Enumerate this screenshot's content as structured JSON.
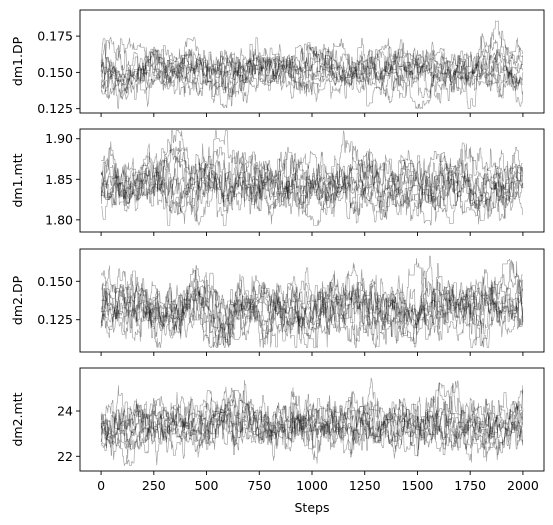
{
  "chart_data": {
    "type": "line",
    "description_note": "",
    "xlabel": "Steps",
    "xlim": [
      -100,
      2100
    ],
    "x_ticks": [
      0,
      250,
      500,
      750,
      1000,
      1250,
      1500,
      1750,
      2000
    ],
    "x_tick_labels": [
      "0",
      "250",
      "500",
      "750",
      "1000",
      "1250",
      "1500",
      "1750",
      "2000"
    ],
    "n_steps": 2000,
    "n_walkers": 10,
    "line_color": "#000000",
    "line_alpha": 0.4,
    "panels": [
      {
        "ylabel": "dm1.DP",
        "ylim": [
          0.122,
          0.193
        ],
        "y_ticks": [
          0.125,
          0.15,
          0.175
        ],
        "y_tick_labels": [
          "0.125",
          "0.150",
          "0.175"
        ],
        "series_mean": 0.151,
        "series_sd": 0.008,
        "observed_range": [
          0.125,
          0.19
        ]
      },
      {
        "ylabel": "dm1.mtt",
        "ylim": [
          1.785,
          1.912
        ],
        "y_ticks": [
          1.8,
          1.85,
          1.9
        ],
        "y_tick_labels": [
          "1.80",
          "1.85",
          "1.90"
        ],
        "series_mean": 1.845,
        "series_sd": 0.018,
        "observed_range": [
          1.793,
          1.91
        ]
      },
      {
        "ylabel": "dm2.DP",
        "ylim": [
          0.104,
          0.171
        ],
        "y_ticks": [
          0.125,
          0.15
        ],
        "y_tick_labels": [
          "0.125",
          "0.150"
        ],
        "series_mean": 0.132,
        "series_sd": 0.01,
        "observed_range": [
          0.107,
          0.168
        ]
      },
      {
        "ylabel": "dm2.mtt",
        "ylim": [
          21.35,
          25.9
        ],
        "y_ticks": [
          22,
          24
        ],
        "y_tick_labels": [
          "22",
          "24"
        ],
        "series_mean": 23.4,
        "series_sd": 0.6,
        "observed_range": [
          21.6,
          25.7
        ]
      }
    ]
  }
}
